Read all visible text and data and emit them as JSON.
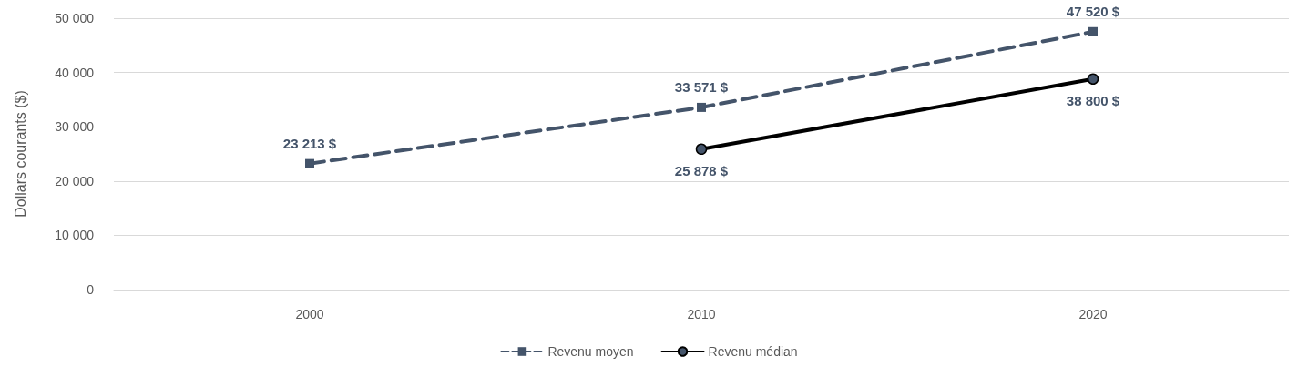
{
  "chart_data": {
    "type": "line",
    "ylabel": "Dollars courants ($)",
    "categories": [
      "2000",
      "2010",
      "2020"
    ],
    "series": [
      {
        "name": "Revenu moyen",
        "color": "#44546a",
        "values": [
          23213,
          33571,
          47520
        ],
        "value_labels": [
          "23 213 $",
          "33 571 $",
          "47 520 $"
        ],
        "marker": "square",
        "line_style": "dashed"
      },
      {
        "name": "Revenu médian",
        "color": "#000000",
        "values": [
          null,
          25878,
          38800
        ],
        "value_labels": [
          null,
          "25 878 $",
          "38 800 $"
        ],
        "marker": "circle",
        "line_style": "solid"
      }
    ],
    "ylim": [
      0,
      50000
    ],
    "yticks": [
      {
        "value": 0,
        "label": "0"
      },
      {
        "value": 10000,
        "label": "10 000"
      },
      {
        "value": 20000,
        "label": "20 000"
      },
      {
        "value": 30000,
        "label": "30 000"
      },
      {
        "value": 40000,
        "label": "40 000"
      },
      {
        "value": 50000,
        "label": "50 000"
      }
    ],
    "grid": "y",
    "legend": "bottom"
  }
}
